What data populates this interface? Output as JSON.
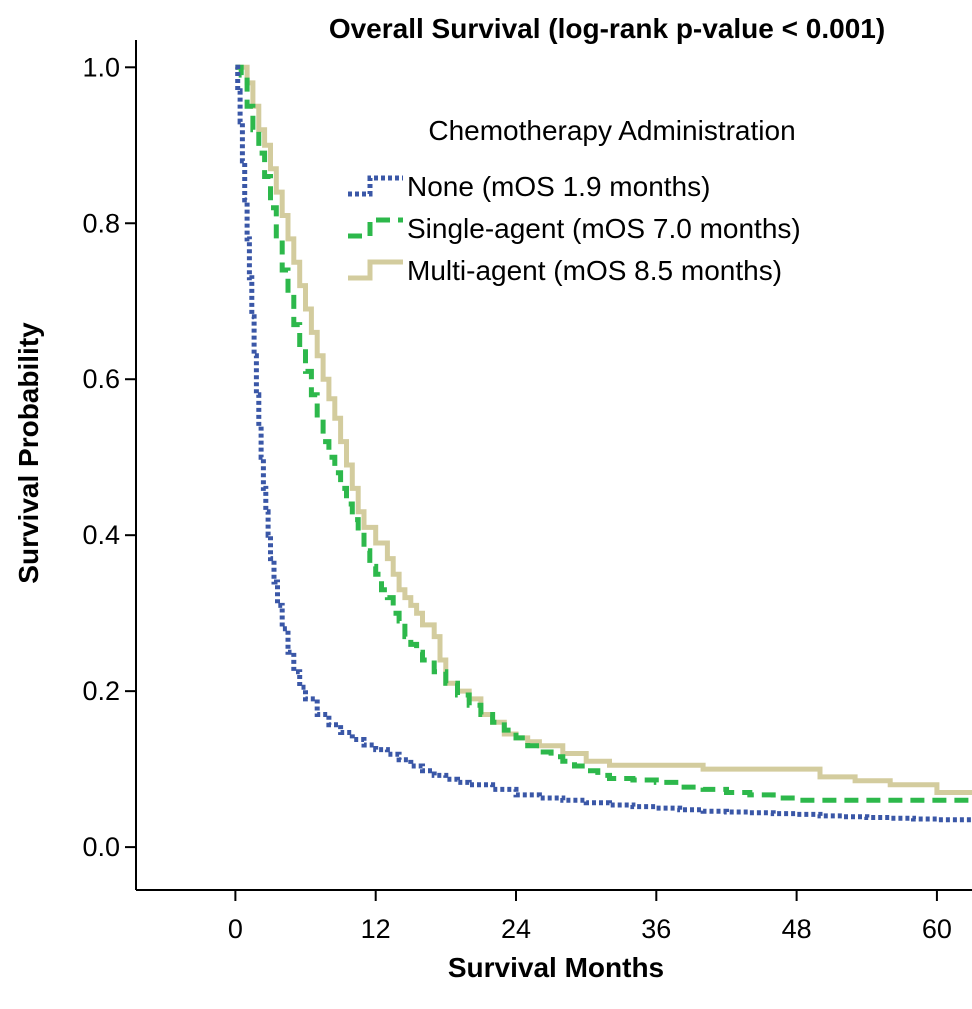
{
  "chart_data": {
    "type": "line",
    "step": true,
    "title": "Overall Survival (log-rank p-value < 0.001)",
    "xlabel": "Survival Months",
    "ylabel": "Survival Probability",
    "xlim": [
      -8.5,
      63
    ],
    "ylim": [
      -0.055,
      1.035
    ],
    "xticks": [
      0,
      12,
      24,
      36,
      48,
      60
    ],
    "xtick_labels": [
      "0",
      "12",
      "24",
      "36",
      "48",
      "60"
    ],
    "yticks": [
      0.0,
      0.2,
      0.4,
      0.6,
      0.8,
      1.0
    ],
    "ytick_labels": [
      "0.0",
      "0.2",
      "0.4",
      "0.6",
      "0.8",
      "1.0"
    ],
    "grid": false,
    "legend": {
      "title": "Chemotherapy Administration",
      "position": "top-right"
    },
    "series": [
      {
        "name": "None (mOS 1.9 months)",
        "color": "#3a57a7",
        "dash": "dotted",
        "points": [
          [
            0,
            1.0
          ],
          [
            0.2,
            0.97
          ],
          [
            0.4,
            0.93
          ],
          [
            0.6,
            0.88
          ],
          [
            0.8,
            0.83
          ],
          [
            1.0,
            0.78
          ],
          [
            1.2,
            0.73
          ],
          [
            1.4,
            0.68
          ],
          [
            1.6,
            0.63
          ],
          [
            1.8,
            0.58
          ],
          [
            2.0,
            0.54
          ],
          [
            2.2,
            0.5
          ],
          [
            2.4,
            0.46
          ],
          [
            2.6,
            0.43
          ],
          [
            2.8,
            0.4
          ],
          [
            3.0,
            0.37
          ],
          [
            3.3,
            0.34
          ],
          [
            3.6,
            0.31
          ],
          [
            4.0,
            0.28
          ],
          [
            4.5,
            0.25
          ],
          [
            5.0,
            0.225
          ],
          [
            5.5,
            0.205
          ],
          [
            6.0,
            0.19
          ],
          [
            7.0,
            0.17
          ],
          [
            8.0,
            0.157
          ],
          [
            9.0,
            0.147
          ],
          [
            10.0,
            0.138
          ],
          [
            11.0,
            0.131
          ],
          [
            12.0,
            0.125
          ],
          [
            13.0,
            0.119
          ],
          [
            14.0,
            0.112
          ],
          [
            15.0,
            0.104
          ],
          [
            16.0,
            0.098
          ],
          [
            17.0,
            0.092
          ],
          [
            18.0,
            0.087
          ],
          [
            19.0,
            0.083
          ],
          [
            20.0,
            0.08
          ],
          [
            22.0,
            0.074
          ],
          [
            24.0,
            0.067
          ],
          [
            26.0,
            0.063
          ],
          [
            28.0,
            0.06
          ],
          [
            30.0,
            0.057
          ],
          [
            32.0,
            0.054
          ],
          [
            34.0,
            0.052
          ],
          [
            36.0,
            0.05
          ],
          [
            38.0,
            0.048
          ],
          [
            40.0,
            0.046
          ],
          [
            42.0,
            0.045
          ],
          [
            44.0,
            0.044
          ],
          [
            46.0,
            0.043
          ],
          [
            48.0,
            0.042
          ],
          [
            50.0,
            0.04
          ],
          [
            52.0,
            0.039
          ],
          [
            54.0,
            0.038
          ],
          [
            56.0,
            0.037
          ],
          [
            58.0,
            0.036
          ],
          [
            60.0,
            0.035
          ],
          [
            63.0,
            0.035
          ]
        ]
      },
      {
        "name": "Single-agent (mOS 7.0 months)",
        "color": "#2db84b",
        "dash": "dashed",
        "points": [
          [
            0,
            1.0
          ],
          [
            0.5,
            0.99
          ],
          [
            1.0,
            0.95
          ],
          [
            1.5,
            0.92
          ],
          [
            2.0,
            0.89
          ],
          [
            2.5,
            0.86
          ],
          [
            3.0,
            0.82
          ],
          [
            3.5,
            0.78
          ],
          [
            4.0,
            0.74
          ],
          [
            4.5,
            0.71
          ],
          [
            5.0,
            0.67
          ],
          [
            5.5,
            0.64
          ],
          [
            6.0,
            0.61
          ],
          [
            6.5,
            0.58
          ],
          [
            7.0,
            0.55
          ],
          [
            7.5,
            0.52
          ],
          [
            8.0,
            0.5
          ],
          [
            8.5,
            0.48
          ],
          [
            9.0,
            0.46
          ],
          [
            9.5,
            0.44
          ],
          [
            10.0,
            0.42
          ],
          [
            10.5,
            0.4
          ],
          [
            11.0,
            0.38
          ],
          [
            11.5,
            0.36
          ],
          [
            12.0,
            0.35
          ],
          [
            12.5,
            0.33
          ],
          [
            13.0,
            0.32
          ],
          [
            13.5,
            0.3
          ],
          [
            14.0,
            0.29
          ],
          [
            14.5,
            0.27
          ],
          [
            15.0,
            0.26
          ],
          [
            15.5,
            0.25
          ],
          [
            16.0,
            0.24
          ],
          [
            17.0,
            0.225
          ],
          [
            18.0,
            0.21
          ],
          [
            19.0,
            0.195
          ],
          [
            20.0,
            0.182
          ],
          [
            21.0,
            0.17
          ],
          [
            22.0,
            0.16
          ],
          [
            23.0,
            0.15
          ],
          [
            24.0,
            0.14
          ],
          [
            25.0,
            0.13
          ],
          [
            26.0,
            0.122
          ],
          [
            27.0,
            0.116
          ],
          [
            28.0,
            0.11
          ],
          [
            29.0,
            0.104
          ],
          [
            30.0,
            0.098
          ],
          [
            31.0,
            0.092
          ],
          [
            32.0,
            0.088
          ],
          [
            34.0,
            0.086
          ],
          [
            36.0,
            0.083
          ],
          [
            38.0,
            0.077
          ],
          [
            40.0,
            0.074
          ],
          [
            42.0,
            0.07
          ],
          [
            44.0,
            0.067
          ],
          [
            46.0,
            0.063
          ],
          [
            48.0,
            0.06
          ],
          [
            50.0,
            0.06
          ],
          [
            55.0,
            0.06
          ],
          [
            60.0,
            0.06
          ],
          [
            63.0,
            0.06
          ]
        ]
      },
      {
        "name": "Multi-agent (mOS 8.5 months)",
        "color": "#d3cc9e",
        "dash": "solid",
        "points": [
          [
            0,
            1.0
          ],
          [
            0.5,
            1.0
          ],
          [
            1.0,
            0.98
          ],
          [
            1.5,
            0.95
          ],
          [
            2.0,
            0.92
          ],
          [
            2.5,
            0.9
          ],
          [
            3.0,
            0.87
          ],
          [
            3.5,
            0.84
          ],
          [
            4.0,
            0.81
          ],
          [
            4.5,
            0.78
          ],
          [
            5.0,
            0.75
          ],
          [
            5.5,
            0.72
          ],
          [
            6.0,
            0.69
          ],
          [
            6.5,
            0.66
          ],
          [
            7.0,
            0.63
          ],
          [
            7.5,
            0.6
          ],
          [
            8.0,
            0.575
          ],
          [
            8.5,
            0.55
          ],
          [
            9.0,
            0.52
          ],
          [
            9.5,
            0.49
          ],
          [
            10.0,
            0.46
          ],
          [
            10.5,
            0.43
          ],
          [
            11.0,
            0.41
          ],
          [
            12.0,
            0.39
          ],
          [
            13.0,
            0.37
          ],
          [
            13.5,
            0.35
          ],
          [
            14.0,
            0.33
          ],
          [
            14.5,
            0.32
          ],
          [
            15.0,
            0.31
          ],
          [
            15.5,
            0.3
          ],
          [
            16.0,
            0.285
          ],
          [
            17.0,
            0.27
          ],
          [
            17.5,
            0.24
          ],
          [
            18.0,
            0.21
          ],
          [
            19.0,
            0.2
          ],
          [
            20.0,
            0.19
          ],
          [
            21.0,
            0.17
          ],
          [
            22.0,
            0.16
          ],
          [
            23.0,
            0.145
          ],
          [
            24.0,
            0.14
          ],
          [
            25.0,
            0.135
          ],
          [
            26.0,
            0.13
          ],
          [
            28.0,
            0.12
          ],
          [
            30.0,
            0.11
          ],
          [
            32.0,
            0.105
          ],
          [
            34.0,
            0.105
          ],
          [
            36.0,
            0.105
          ],
          [
            40.0,
            0.1
          ],
          [
            44.0,
            0.1
          ],
          [
            47.0,
            0.1
          ],
          [
            50.0,
            0.09
          ],
          [
            53.0,
            0.085
          ],
          [
            56.0,
            0.08
          ],
          [
            60.0,
            0.07
          ],
          [
            63.0,
            0.07
          ]
        ]
      }
    ]
  }
}
